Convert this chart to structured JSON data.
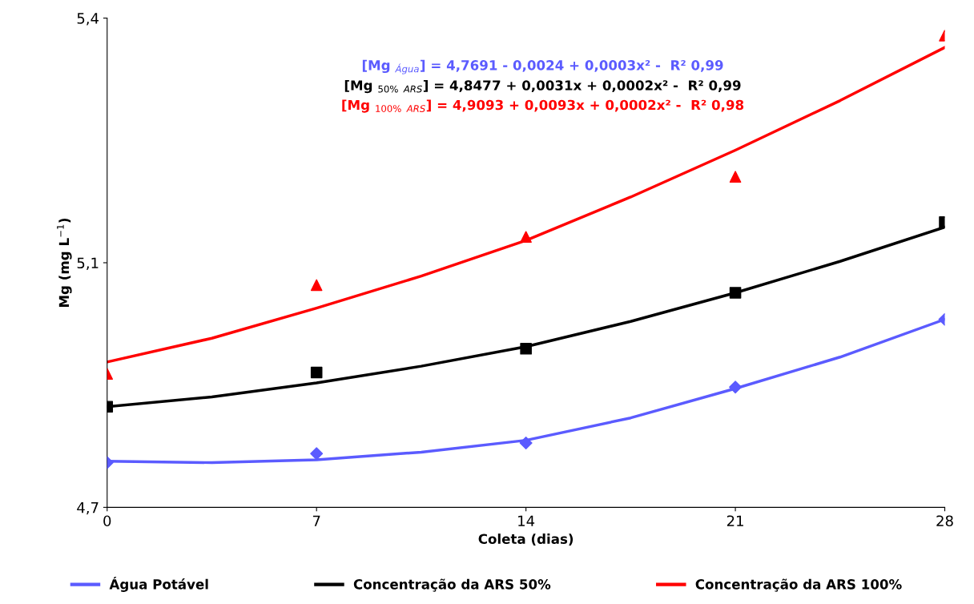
{
  "chart_data": {
    "type": "scatter",
    "xlabel": "Coleta (dias)",
    "ylabel": "Mg (mg L$^{−1}$)",
    "x": [
      0,
      7,
      14,
      21,
      28
    ],
    "series": [
      {
        "color": "#5b5bff",
        "marker": "diamond",
        "values": [
          4.764,
          4.777,
          4.792,
          4.872,
          4.969
        ]
      },
      {
        "color": "#000000",
        "marker": "square",
        "values": [
          4.844,
          4.893,
          4.927,
          5.007,
          5.108
        ]
      },
      {
        "color": "#ff0000",
        "marker": "triangle",
        "values": [
          4.891,
          5.018,
          5.087,
          5.173,
          5.375
        ]
      },
      {
        "type": "line",
        "name": "Água Potável",
        "color": "#5b5bff",
        "x": [
          0,
          3.5,
          7,
          10.5,
          14,
          17.5,
          21,
          24.5,
          28
        ],
        "values": [
          4.766,
          4.764,
          4.768,
          4.779,
          4.796,
          4.828,
          4.87,
          4.915,
          4.969
        ]
      },
      {
        "type": "line",
        "name": "Concentração da ARS 50%",
        "color": "#000000",
        "x": [
          0,
          3.5,
          7,
          10.5,
          14,
          17.5,
          21,
          24.5,
          28
        ],
        "values": [
          4.844,
          4.858,
          4.878,
          4.902,
          4.93,
          4.966,
          5.007,
          5.052,
          5.101
        ]
      },
      {
        "type": "line",
        "name": "Concentração da ARS 100%",
        "color": "#ff0000",
        "x": [
          0,
          3.5,
          7,
          10.5,
          14,
          17.5,
          21,
          24.5,
          28
        ],
        "values": [
          4.908,
          4.942,
          4.985,
          5.031,
          5.082,
          5.144,
          5.211,
          5.282,
          5.358
        ]
      }
    ],
    "annotations": [
      "[Mg $_{Água}$] = 4,7691 - 0,0024 + 0,0003x² -  R² 0,99",
      "[Mg $_{50%}$ $_{ARS}$] = 4,8477 + 0,0031x + 0,0002x² -  R² 0,99",
      "[Mg $_{100%}$ $_{ARS}$] = 4,9093 + 0,0093x + 0,0002x² -  R² 0,98"
    ],
    "xlim": [
      0,
      28
    ],
    "xticks": [
      0,
      7,
      14,
      21,
      28
    ],
    "ylim": [
      4.7,
      5.4
    ],
    "yticks": [
      {
        "value": 4.7,
        "label": "4,7"
      },
      {
        "value": 5.05,
        "label": "5,1"
      },
      {
        "value": 5.4,
        "label": "5,4"
      }
    ],
    "grid": false,
    "legend": "bottom",
    "line_style": "solid"
  }
}
